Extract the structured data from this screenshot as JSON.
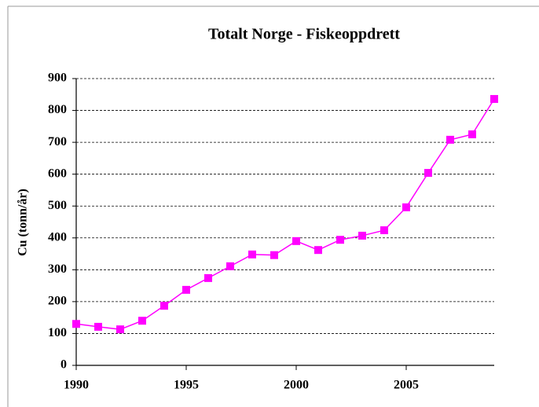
{
  "chart_data": {
    "type": "line",
    "title": "Totalt Norge - Fiskeoppdrett",
    "ylabel": "Cu (tonn/år)",
    "x": [
      1990,
      1991,
      1992,
      1993,
      1994,
      1995,
      1996,
      1997,
      1998,
      1999,
      2000,
      2001,
      2002,
      2003,
      2004,
      2005,
      2006,
      2007,
      2008,
      2009
    ],
    "series": [
      {
        "name": "Cu",
        "color": "#ff00ff",
        "values": [
          130,
          121,
          113,
          140,
          187,
          237,
          274,
          311,
          348,
          346,
          390,
          362,
          394,
          407,
          424,
          496,
          604,
          708,
          725,
          836
        ]
      }
    ],
    "xlim": [
      1990,
      2009
    ],
    "xticks": [
      1990,
      1995,
      2000,
      2005
    ],
    "ylim": [
      0,
      900
    ],
    "yticks": [
      0,
      100,
      200,
      300,
      400,
      500,
      600,
      700,
      800,
      900
    ],
    "grid": true
  }
}
